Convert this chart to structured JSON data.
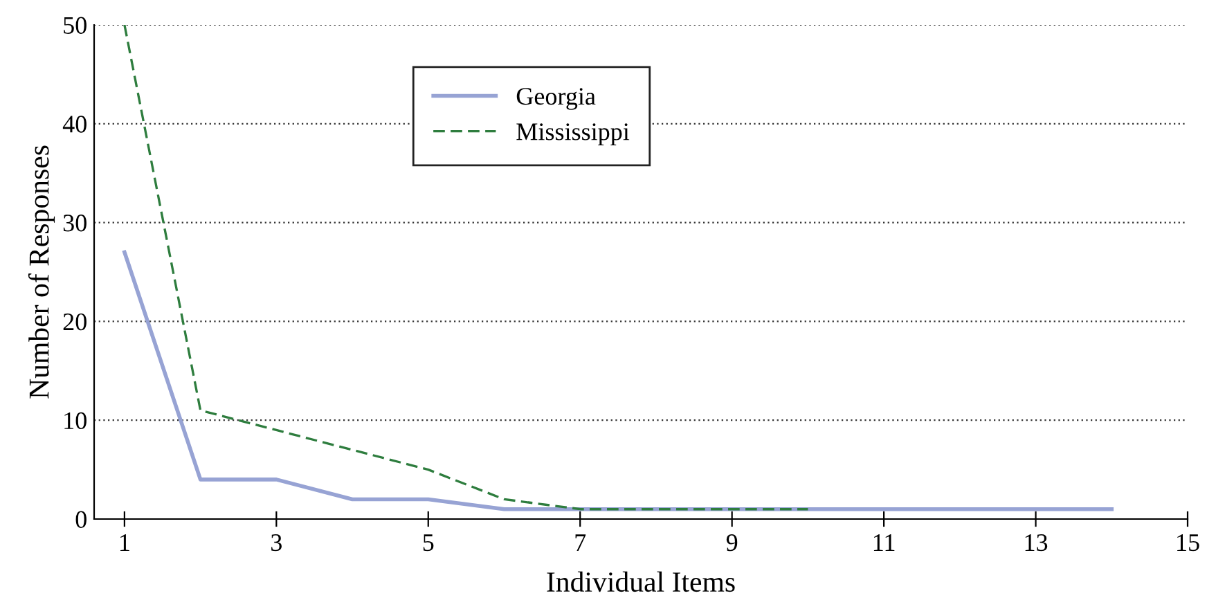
{
  "chart_data": {
    "type": "line",
    "xlabel": "Individual Items",
    "ylabel": "Number of Responses",
    "x": [
      1,
      2,
      3,
      4,
      5,
      6,
      7,
      8,
      9,
      10,
      11,
      12,
      13,
      14
    ],
    "series": [
      {
        "name": "Georgia",
        "color": "#97a3d4",
        "line_style": "solid",
        "values": [
          27,
          4,
          4,
          2,
          2,
          1,
          1,
          1,
          1,
          1,
          1,
          1,
          1,
          1
        ]
      },
      {
        "name": "Mississippi",
        "color": "#2e7d3e",
        "line_style": "dashed",
        "x": [
          1,
          2,
          3,
          4,
          5,
          6,
          7,
          8,
          9,
          10
        ],
        "values": [
          50,
          11,
          9,
          7,
          5,
          2,
          1,
          1,
          1,
          1
        ]
      }
    ],
    "xlim": [
      0.6,
      15
    ],
    "xticks": [
      1,
      3,
      5,
      7,
      9,
      11,
      13,
      15
    ],
    "ylim": [
      0,
      50
    ],
    "yticks": [
      0,
      10,
      20,
      30,
      40,
      50
    ],
    "grid": "y",
    "legend": "top",
    "marker": "none"
  }
}
